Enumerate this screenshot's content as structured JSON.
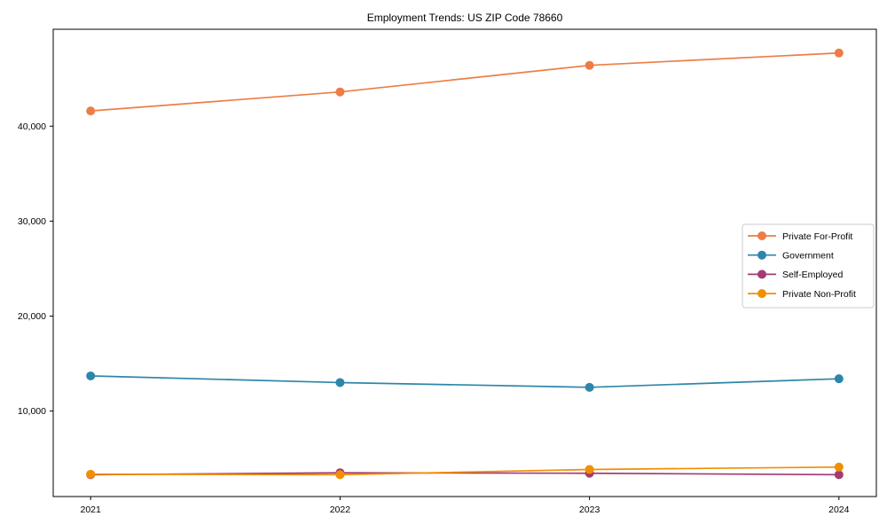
{
  "chart_data": {
    "type": "line",
    "title": "Employment Trends: US ZIP Code 78660",
    "x": [
      2021,
      2022,
      2023,
      2024
    ],
    "xticklabels": [
      "2021",
      "2022",
      "2023",
      "2024"
    ],
    "series": [
      {
        "name": "Private For-Profit",
        "color": "#ED7D45",
        "values": [
          41600,
          43600,
          46400,
          47700
        ]
      },
      {
        "name": "Government",
        "color": "#2E86AB",
        "values": [
          13700,
          13000,
          12500,
          13400
        ]
      },
      {
        "name": "Self-Employed",
        "color": "#A23B72",
        "values": [
          3300,
          3500,
          3450,
          3300
        ]
      },
      {
        "name": "Private Non-Profit",
        "color": "#F18F01",
        "values": [
          3350,
          3300,
          3850,
          4100
        ]
      }
    ],
    "xlabel": "",
    "ylabel": "",
    "xlim": [
      2020.85,
      2024.15
    ],
    "ylim": [
      1000,
      50200
    ],
    "yticks": [
      10000,
      20000,
      30000,
      40000
    ],
    "ytick_format": "comma",
    "grid": false,
    "legend_position": "center right",
    "marker": "circle",
    "text_color": "#000000",
    "spine_color": "#000000",
    "legend_border_color": "#cccccc",
    "background_color": "#ffffff"
  }
}
